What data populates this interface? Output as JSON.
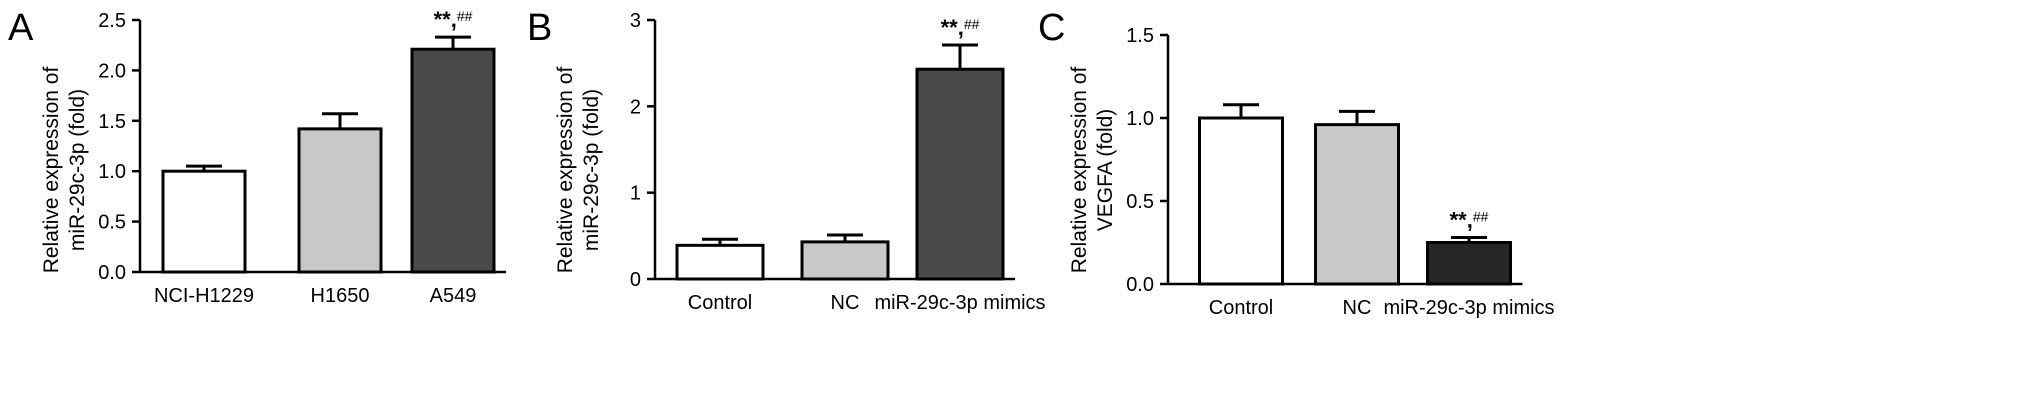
{
  "chart_data": [
    {
      "type": "bar",
      "panel": "A",
      "ylabel": [
        "Relative expression of",
        "miR-29c-3p (fold)"
      ],
      "ylim": [
        0,
        2.5
      ],
      "yticks": [
        "0.0",
        "0.5",
        "1.0",
        "1.5",
        "2.0",
        "2.5"
      ],
      "categories": [
        "NCI-H1229",
        "H1650",
        "A549"
      ],
      "values": [
        1.0,
        1.42,
        2.21
      ],
      "errors": [
        0.05,
        0.15,
        0.12
      ],
      "colors": [
        "#ffffff",
        "#c8c8c8",
        "#4a4a4a"
      ],
      "annotations": [
        null,
        null,
        {
          "stars": "**,",
          "hashes": "##"
        }
      ]
    },
    {
      "type": "bar",
      "panel": "B",
      "ylabel": [
        "Relative expression of",
        "miR-29c-3p (fold)"
      ],
      "ylim": [
        0,
        3
      ],
      "yticks": [
        "0",
        "1",
        "2",
        "3"
      ],
      "categories": [
        "Control",
        "NC",
        "miR-29c-3p mimics"
      ],
      "values": [
        0.39,
        0.43,
        2.43
      ],
      "errors": [
        0.07,
        0.08,
        0.28
      ],
      "colors": [
        "#ffffff",
        "#c8c8c8",
        "#4a4a4a"
      ],
      "annotations": [
        null,
        null,
        {
          "stars": "**,",
          "hashes": "##"
        }
      ]
    },
    {
      "type": "bar",
      "panel": "C",
      "ylabel": [
        "Relative expression of",
        "VEGFA (fold)"
      ],
      "ylim": [
        0,
        1.5
      ],
      "yticks": [
        "0.0",
        "0.5",
        "1.0",
        "1.5"
      ],
      "categories": [
        "Control",
        "NC",
        "miR-29c-3p mimics"
      ],
      "values": [
        1.0,
        0.96,
        0.25
      ],
      "errors": [
        0.08,
        0.08,
        0.03
      ],
      "colors": [
        "#ffffff",
        "#c8c8c8",
        "#262626"
      ],
      "annotations": [
        null,
        null,
        {
          "stars": "**,",
          "hashes": "##"
        }
      ]
    }
  ]
}
